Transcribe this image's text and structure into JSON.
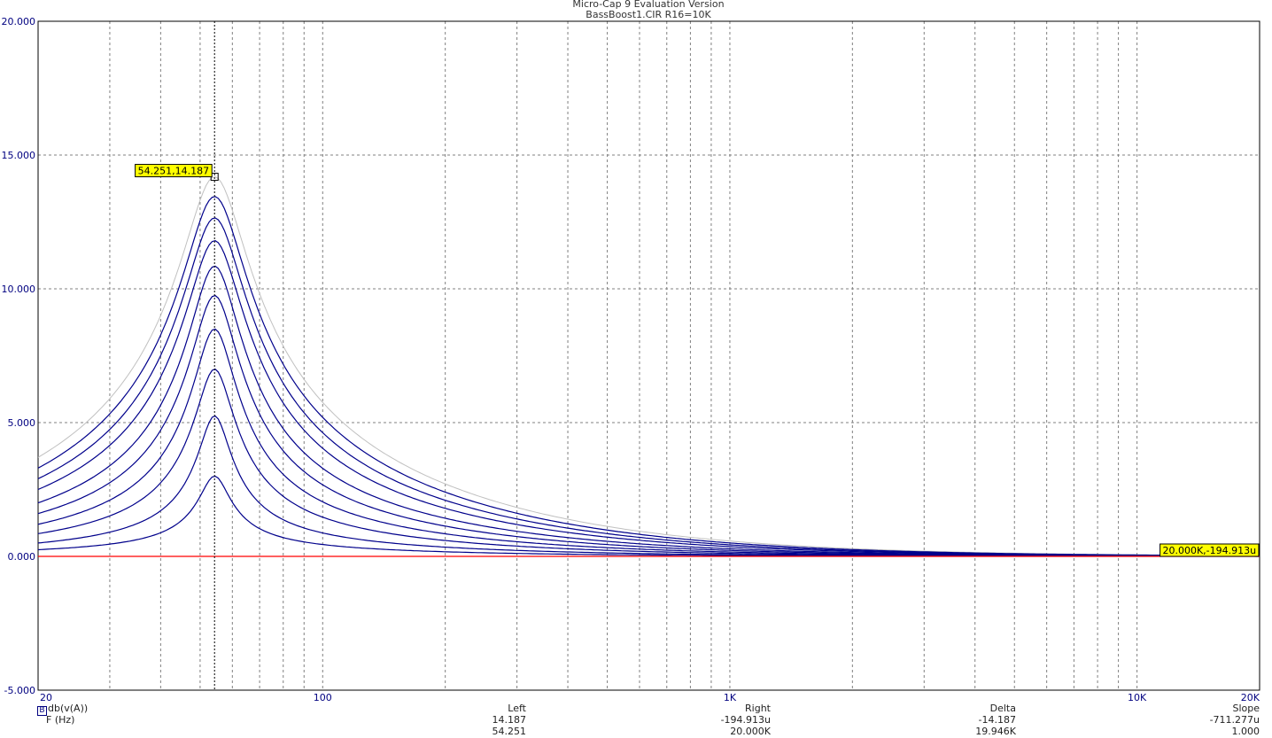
{
  "header": {
    "app_title": "Micro-Cap 9 Evaluation Version",
    "file_title": "BassBoost1.CIR R16=10K"
  },
  "chart_data": {
    "type": "line",
    "x_scale": "log",
    "xlim": [
      20,
      20000
    ],
    "ylim": [
      -5,
      20
    ],
    "grid": true,
    "x_tick_labels": [
      "20",
      "100",
      "1K",
      "10K",
      "20K"
    ],
    "y_tick_labels": [
      "20.000",
      "15.000",
      "10.000",
      "5.000",
      "0.000",
      "-5.000"
    ],
    "y_ticks": [
      20,
      15,
      10,
      5,
      0,
      -5
    ],
    "peak_frequency": 54.251,
    "series": [
      {
        "peak_db": 14.187,
        "color": "#c0c0c0",
        "at_20hz_db": 3.7
      },
      {
        "peak_db": 13.45,
        "color": "#00008b",
        "at_20hz_db": 3.3
      },
      {
        "peak_db": 12.65,
        "color": "#00008b",
        "at_20hz_db": 2.9
      },
      {
        "peak_db": 11.8,
        "color": "#00008b",
        "at_20hz_db": 2.5
      },
      {
        "peak_db": 10.85,
        "color": "#00008b",
        "at_20hz_db": 2.0
      },
      {
        "peak_db": 9.75,
        "color": "#00008b",
        "at_20hz_db": 1.6
      },
      {
        "peak_db": 8.5,
        "color": "#00008b",
        "at_20hz_db": 1.2
      },
      {
        "peak_db": 7.0,
        "color": "#00008b",
        "at_20hz_db": 0.85
      },
      {
        "peak_db": 5.25,
        "color": "#00008b",
        "at_20hz_db": 0.5
      },
      {
        "peak_db": 3.0,
        "color": "#00008b",
        "at_20hz_db": 0.25
      },
      {
        "peak_db": 0.0,
        "color": "#ff0000",
        "at_20hz_db": 0.0
      }
    ],
    "cursor_left": {
      "label": "54.251,14.187",
      "x": 54.251,
      "y": 14.187
    },
    "cursor_right": {
      "label": "20.000K,-194.913u",
      "x": 20000,
      "y": -0.000194913
    }
  },
  "readout": {
    "legend_y": "db(v(A))",
    "legend_y_marker": "B",
    "legend_x": "F (Hz)",
    "left_header": "Left",
    "left_y": "14.187",
    "left_x": "54.251",
    "right_header": "Right",
    "right_y": "-194.913u",
    "right_x": "20.000K",
    "delta_header": "Delta",
    "delta_y": "-14.187",
    "delta_x": "19.946K",
    "slope_header": "Slope",
    "slope_y": "-711.277u",
    "slope_x": "1.000"
  },
  "colors": {
    "axis": "#000000",
    "grid": "#808080",
    "series_blue": "#00008b",
    "series_gray": "#c0c0c0",
    "series_red": "#ff0000",
    "label_bg": "#ffff00",
    "axis_text": "#000080"
  }
}
